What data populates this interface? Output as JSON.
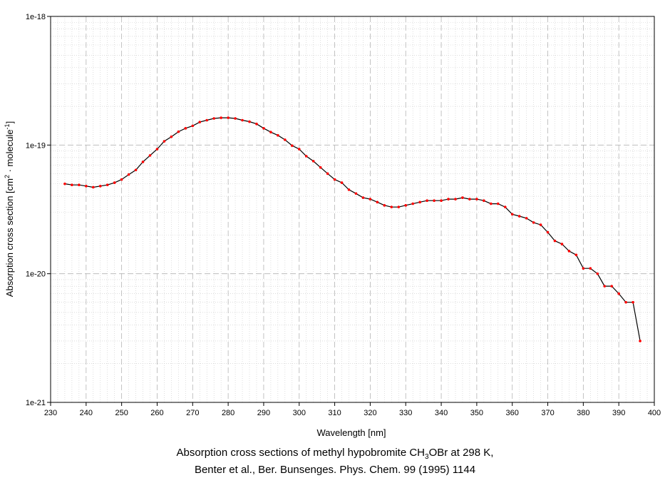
{
  "chart_data": {
    "type": "line",
    "xlabel": "Wavelength [nm]",
    "ylabel_main": "Absorption cross section [cm",
    "ylabel_exp1": "2",
    "ylabel_mid": " · molecule",
    "ylabel_exp2": "-1",
    "ylabel_end": "]",
    "xlim": [
      230,
      400
    ],
    "ylim": [
      1e-21,
      1e-18
    ],
    "yscale": "log",
    "grid": true,
    "x_ticks": [
      230,
      240,
      250,
      260,
      270,
      280,
      290,
      300,
      310,
      320,
      330,
      340,
      350,
      360,
      370,
      380,
      390,
      400
    ],
    "y_ticks": [
      {
        "value": 1e-21,
        "label": "1e-21"
      },
      {
        "value": 1e-20,
        "label": "1e-20"
      },
      {
        "value": 1e-19,
        "label": "1e-19"
      },
      {
        "value": 1e-18,
        "label": "1e-18"
      }
    ],
    "line_color": "#000000",
    "marker_color": "#ff0000",
    "series": [
      {
        "x": [
          234,
          236,
          238,
          240,
          242,
          244,
          246,
          248,
          250,
          252,
          254,
          256,
          258,
          260,
          262,
          264,
          266,
          268,
          270,
          272,
          274,
          276,
          278,
          280,
          282,
          284,
          286,
          288,
          290,
          292,
          294,
          296,
          298,
          300,
          302,
          304,
          306,
          308,
          310,
          312,
          314,
          316,
          318,
          320,
          322,
          324,
          326,
          328,
          330,
          332,
          334,
          336,
          338,
          340,
          342,
          344,
          346,
          348,
          350,
          352,
          354,
          356,
          358,
          360,
          362,
          364,
          366,
          368,
          370,
          372,
          374,
          376,
          378,
          380,
          382,
          384,
          386,
          388,
          390,
          392,
          394,
          396
        ],
        "y": [
          5e-20,
          4.9e-20,
          4.9e-20,
          4.8e-20,
          4.7e-20,
          4.8e-20,
          4.9e-20,
          5.1e-20,
          5.4e-20,
          5.9e-20,
          6.4e-20,
          7.4e-20,
          8.3e-20,
          9.3e-20,
          1.07e-19,
          1.16e-19,
          1.27e-19,
          1.35e-19,
          1.41e-19,
          1.51e-19,
          1.56e-19,
          1.61e-19,
          1.63e-19,
          1.63e-19,
          1.61e-19,
          1.56e-19,
          1.52e-19,
          1.46e-19,
          1.35e-19,
          1.26e-19,
          1.19e-19,
          1.1e-19,
          9.9e-20,
          9.3e-20,
          8.2e-20,
          7.5e-20,
          6.7e-20,
          6e-20,
          5.4e-20,
          5.1e-20,
          4.5e-20,
          4.2e-20,
          3.9e-20,
          3.8e-20,
          3.6e-20,
          3.4e-20,
          3.3e-20,
          3.3e-20,
          3.4e-20,
          3.5e-20,
          3.6e-20,
          3.7e-20,
          3.7e-20,
          3.7e-20,
          3.8e-20,
          3.8e-20,
          3.9e-20,
          3.8e-20,
          3.8e-20,
          3.7e-20,
          3.5e-20,
          3.5e-20,
          3.3e-20,
          2.9e-20,
          2.8e-20,
          2.7e-20,
          2.5e-20,
          2.4e-20,
          2.1e-20,
          1.8e-20,
          1.7e-20,
          1.5e-20,
          1.4e-20,
          1.1e-20,
          1.1e-20,
          1e-20,
          8e-21,
          8e-21,
          7e-21,
          6e-21,
          6e-21,
          3e-21
        ]
      }
    ]
  },
  "caption": {
    "line1_pre": "Absorption cross sections of methyl hypobromite CH",
    "line1_sub": "3",
    "line1_post": "OBr at 298 K,",
    "line2": "Benter et al., Ber. Bunsenges. Phys. Chem. 99 (1995) 1144"
  }
}
